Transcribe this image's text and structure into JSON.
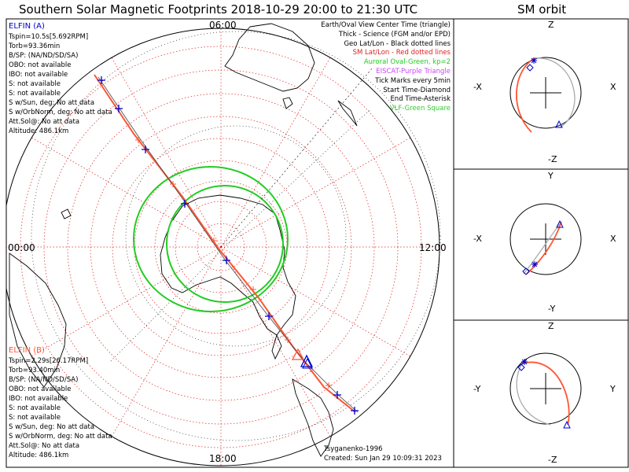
{
  "header": {
    "title": "Southern Solar Magnetic Footprints 2018-10-29 20:00 to 21:30 UTC",
    "sm_orbit_title": "SM orbit"
  },
  "colors": {
    "elfin_a": "#0000cc",
    "elfin_b": "#ff5533",
    "sm_grid": "#dd2222",
    "aurora": "#22cc22",
    "eiscat": "#cc44ff",
    "vlf": "#33cc33",
    "orbit_gray": "#aaaaaa"
  },
  "map": {
    "hour_top": "06:00",
    "hour_left": "00:00",
    "hour_right": "12:00",
    "hour_bottom": "18:00"
  },
  "elfin_a": {
    "title": "ELFIN (A)",
    "lines": [
      "Tspin=10.5s[5.692RPM]",
      "Torb=93.36min",
      "B/SP: (NA/ND/SD/SA)",
      "OBO: not available",
      "IBO: not available",
      "S: not available",
      "S: not available",
      "S w/Sun, deg: No att data",
      "S w/OrbNorm, deg: No att data",
      "Att.Sol@: No att data",
      "Altitude: 486.1km"
    ]
  },
  "elfin_b": {
    "title": "ELFIN (B)",
    "lines": [
      "Tspin=2.29s[26.17RPM]",
      "Torb=93.40min",
      "B/SP: (NA/ND/SD/SA)",
      "OBO: not available",
      "IBO: not available",
      "S: not available",
      "S: not available",
      "S w/Sun, deg: No att data",
      "S w/OrbNorm, deg: No att data",
      "Att.Sol@: No att data",
      "Altitude: 486.1km"
    ]
  },
  "legend": [
    {
      "text": "Earth/Oval View Center Time (triangle)",
      "color": "#000000"
    },
    {
      "text": "Thick - Science (FGM and/or EPD)",
      "color": "#000000"
    },
    {
      "text": "Geo Lat/Lon - Black dotted lines",
      "color": "#000000"
    },
    {
      "text": "SM Lat/Lon - Red dotted lines",
      "color": "#dd2222"
    },
    {
      "text": "Auroral Oval-Green, kp=2",
      "color": "#22cc22"
    },
    {
      "text": "EISCAT-Purple Triangle",
      "color": "#cc44ff"
    },
    {
      "text": "Tick Marks every 5min",
      "color": "#000000"
    },
    {
      "text": "Start Time-Diamond",
      "color": "#000000"
    },
    {
      "text": "End Time-Asterisk",
      "color": "#000000"
    },
    {
      "text": "VLF-Green Square",
      "color": "#33cc33"
    }
  ],
  "footer": {
    "model": "Tsyganenko-1996",
    "created": "Created: Sun Jan 29 10:09:31 2023"
  },
  "orbit_panels": [
    {
      "top": "Z",
      "bottom": "-Z",
      "left": "-X",
      "right": "X"
    },
    {
      "top": "Y",
      "bottom": "-Y",
      "left": "-X",
      "right": "X"
    },
    {
      "top": "Z",
      "bottom": "-Z",
      "left": "-Y",
      "right": "Y"
    }
  ]
}
